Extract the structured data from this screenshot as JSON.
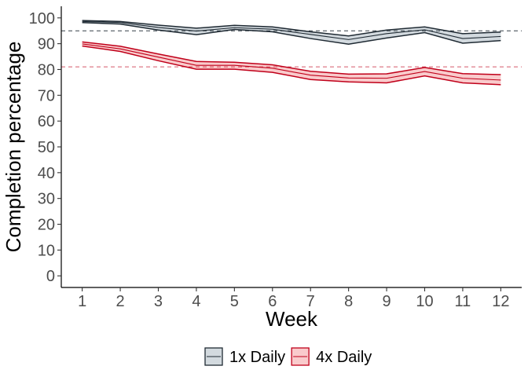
{
  "chart_data": {
    "type": "line",
    "xlabel": "Week",
    "ylabel": "Completion percentage",
    "x": [
      1,
      2,
      3,
      4,
      5,
      6,
      7,
      8,
      9,
      10,
      11,
      12
    ],
    "xlim": [
      0.45,
      12.55
    ],
    "ylim": [
      -4.5,
      104.5
    ],
    "yticks": [
      0,
      10,
      20,
      30,
      40,
      50,
      60,
      70,
      80,
      90,
      100
    ],
    "grid": false,
    "legend_position": "bottom",
    "series": [
      {
        "name": "1x Daily",
        "color": "#1f2a33",
        "fill": "#d3dadf",
        "values": [
          98.6,
          98.2,
          96.3,
          94.9,
          96.2,
          95.6,
          93.6,
          91.6,
          93.9,
          95.4,
          92.0,
          92.8
        ],
        "lower": [
          98.2,
          97.6,
          95.3,
          93.5,
          95.5,
          94.6,
          92.0,
          89.8,
          92.2,
          94.3,
          90.2,
          91.2
        ],
        "upper": [
          99.0,
          98.6,
          97.2,
          96.0,
          97.1,
          96.5,
          94.6,
          93.0,
          95.3,
          96.5,
          93.9,
          94.5
        ],
        "reference": 95
      },
      {
        "name": "4x Daily",
        "color": "#c0001a",
        "fill": "#f9cbcc",
        "values": [
          89.9,
          88.0,
          84.8,
          81.6,
          81.6,
          80.5,
          77.8,
          76.7,
          76.6,
          79.2,
          76.6,
          75.9
        ],
        "lower": [
          89.1,
          87.0,
          83.4,
          80.1,
          80.1,
          78.9,
          76.1,
          75.2,
          74.8,
          77.5,
          74.8,
          74.1
        ],
        "upper": [
          90.7,
          89.0,
          86.0,
          83.1,
          82.8,
          81.8,
          79.3,
          78.2,
          78.3,
          80.8,
          78.4,
          78.0
        ],
        "reference": 81
      }
    ]
  }
}
